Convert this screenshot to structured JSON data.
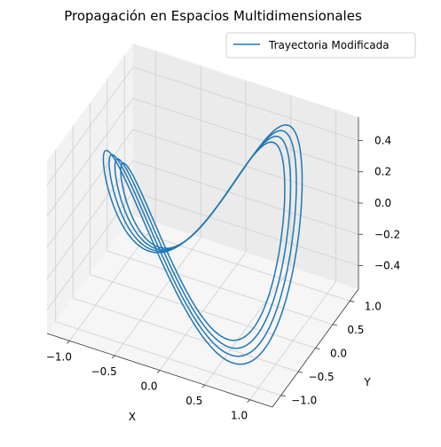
{
  "chart_data": {
    "type": "line",
    "projection": "3d",
    "title": "Propagación en Espacios Multidimensionales",
    "xlabel": "X",
    "ylabel": "Y",
    "zlabel": "",
    "xlim": [
      -1.25,
      1.25
    ],
    "ylim": [
      -1.25,
      1.25
    ],
    "zlim": [
      -0.55,
      0.55
    ],
    "x_ticks": [
      "−1.0",
      "−0.5",
      "0.0",
      "0.5",
      "1.0"
    ],
    "y_ticks": [
      "−1.0",
      "−0.5",
      "0.0",
      "0.5",
      "1.0"
    ],
    "z_ticks": [
      "−0.4",
      "−0.2",
      "0.0",
      "0.2",
      "0.4"
    ],
    "grid": true,
    "legend": {
      "position": "upper-right",
      "entries": [
        "Trayectoria Modificada"
      ]
    },
    "series": [
      {
        "name": "Trayectoria Modificada",
        "color": "#1f77b4",
        "curve": "closed saddle loops: x = cos(t), y = sin(t), z = 0.5·sin(2t), four concentric loops with radius scales",
        "loop_scales": [
          0.85,
          0.91,
          0.97,
          1.03
        ]
      }
    ]
  }
}
